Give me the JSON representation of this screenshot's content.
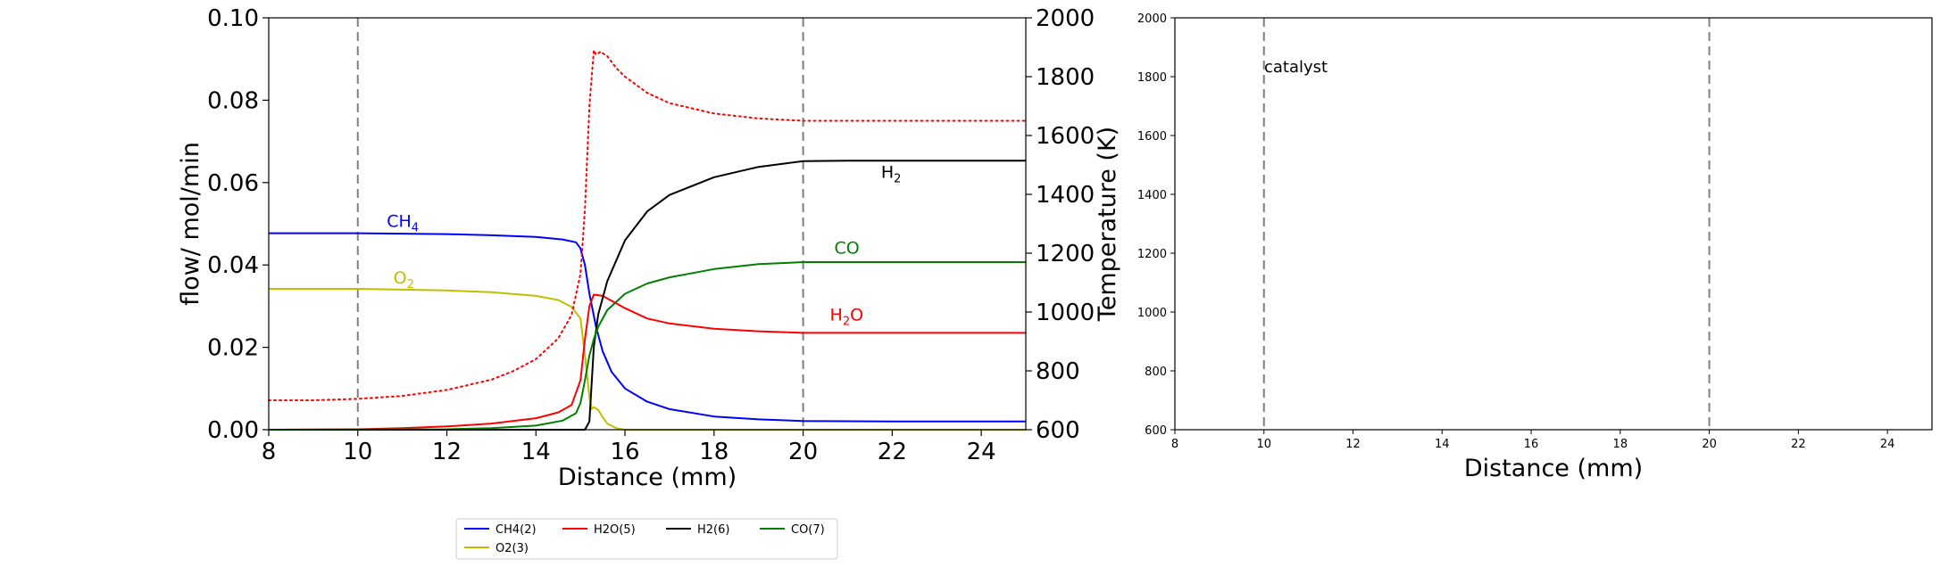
{
  "colors": {
    "CH4": "#0000ff",
    "O2": "#bfbf00",
    "H2O": "#ff0000",
    "H2": "#000000",
    "CO": "#008000",
    "temperature": "#ff0000",
    "marker": "#808080"
  },
  "chart_data": [
    {
      "type": "line",
      "xlabel": "Distance (mm)",
      "ylabel": "flow/ mol/min",
      "y2label": "Temperature (K)",
      "xlim": [
        8,
        25
      ],
      "ylim": [
        0,
        0.1
      ],
      "y2lim": [
        600,
        2000
      ],
      "xticks": [
        "8",
        "10",
        "12",
        "14",
        "16",
        "18",
        "20",
        "22",
        "24"
      ],
      "yticks": [
        "0.00",
        "0.02",
        "0.04",
        "0.06",
        "0.08",
        "0.10"
      ],
      "y2ticks": [
        "600",
        "800",
        "1000",
        "1200",
        "1400",
        "1600",
        "1800",
        "2000"
      ],
      "vlines": [
        10,
        20
      ],
      "grid": false,
      "series": [
        {
          "name": "CH4(2)",
          "key": "CH4",
          "axis": "y1",
          "x": [
            8,
            10,
            12,
            13,
            14,
            14.6,
            14.9,
            15.0,
            15.1,
            15.2,
            15.35,
            15.5,
            15.7,
            16,
            16.5,
            17,
            18,
            19,
            20,
            22,
            25
          ],
          "y": [
            0.0477,
            0.0477,
            0.0475,
            0.0472,
            0.0468,
            0.0462,
            0.0455,
            0.044,
            0.04,
            0.033,
            0.025,
            0.019,
            0.014,
            0.01,
            0.0068,
            0.005,
            0.0032,
            0.0025,
            0.0021,
            0.002,
            0.002
          ]
        },
        {
          "name": "O2(3)",
          "key": "O2",
          "axis": "y1",
          "x": [
            8,
            10,
            12,
            13,
            14,
            14.5,
            14.8,
            15.0,
            15.1,
            15.2,
            15.25,
            15.3,
            15.4,
            15.5,
            15.6,
            15.8,
            16,
            25
          ],
          "y": [
            0.0342,
            0.0342,
            0.0338,
            0.0334,
            0.0325,
            0.0315,
            0.0298,
            0.027,
            0.018,
            0.008,
            0.005,
            0.0055,
            0.0048,
            0.003,
            0.0015,
            0.0004,
            0.0,
            0.0
          ]
        },
        {
          "name": "H2O(5)",
          "key": "H2O",
          "axis": "y1",
          "x": [
            8,
            10,
            11,
            12,
            13,
            14,
            14.5,
            14.8,
            15.0,
            15.1,
            15.2,
            15.3,
            15.5,
            16,
            16.5,
            17,
            18,
            19,
            20,
            22,
            25
          ],
          "y": [
            0.0,
            0.0001,
            0.0004,
            0.0008,
            0.0015,
            0.0028,
            0.0042,
            0.006,
            0.012,
            0.022,
            0.03,
            0.0328,
            0.0325,
            0.0295,
            0.027,
            0.0258,
            0.0245,
            0.0239,
            0.0235,
            0.0235,
            0.0235
          ]
        },
        {
          "name": "H2(6)",
          "key": "H2",
          "axis": "y1",
          "x": [
            8,
            15.1,
            15.2,
            15.3,
            15.4,
            15.6,
            16,
            16.5,
            17,
            18,
            19,
            20,
            21,
            25
          ],
          "y": [
            0.0,
            0.0,
            0.002,
            0.02,
            0.028,
            0.036,
            0.046,
            0.053,
            0.057,
            0.0613,
            0.0638,
            0.0652,
            0.0653,
            0.0653
          ]
        },
        {
          "name": "CO(7)",
          "key": "CO",
          "axis": "y1",
          "x": [
            8,
            12,
            13,
            14,
            14.6,
            14.9,
            15.0,
            15.1,
            15.2,
            15.3,
            15.4,
            15.6,
            16,
            16.5,
            17,
            18,
            19,
            20,
            25
          ],
          "y": [
            0.0,
            0.0001,
            0.0004,
            0.001,
            0.0022,
            0.004,
            0.0065,
            0.012,
            0.018,
            0.022,
            0.025,
            0.029,
            0.033,
            0.0355,
            0.037,
            0.039,
            0.0402,
            0.0407,
            0.0407
          ]
        },
        {
          "name": "",
          "key": "temperature",
          "axis": "y2",
          "dotted": true,
          "x": [
            8,
            9,
            10,
            11,
            12,
            13,
            13.5,
            14,
            14.5,
            14.8,
            15.0,
            15.1,
            15.2,
            15.3,
            15.35,
            15.45,
            15.6,
            15.8,
            16,
            16.5,
            17,
            18,
            19,
            20,
            25
          ],
          "y": [
            700,
            700,
            705,
            715,
            735,
            770,
            800,
            840,
            910,
            990,
            1130,
            1350,
            1700,
            1890,
            1875,
            1885,
            1870,
            1830,
            1800,
            1745,
            1710,
            1675,
            1658,
            1650,
            1650
          ]
        }
      ],
      "annotations": [
        {
          "text_main": "CH",
          "text_sub": "4",
          "text_tail": "",
          "key": "CH4",
          "x": 10.65,
          "y": 0.0492
        },
        {
          "text_main": "O",
          "text_sub": "2",
          "text_tail": "",
          "key": "O2",
          "x": 10.8,
          "y": 0.0355
        },
        {
          "text_main": "CO",
          "text_sub": "",
          "text_tail": "",
          "key": "CO",
          "x": 20.7,
          "y": 0.0428
        },
        {
          "text_main": "H",
          "text_sub": "2",
          "text_tail": "O",
          "key": "H2O",
          "x": 20.6,
          "y": 0.0265
        },
        {
          "text_main": "H",
          "text_sub": "2",
          "text_tail": "",
          "key": "H2",
          "x": 21.75,
          "y": 0.0612
        }
      ]
    },
    {
      "type": "line",
      "xlabel": "Distance (mm)",
      "xlim": [
        8,
        25
      ],
      "ylim": [
        600,
        2000
      ],
      "xticks": [
        "8",
        "10",
        "12",
        "14",
        "16",
        "18",
        "20",
        "22",
        "24"
      ],
      "yticks": [
        "600",
        "800",
        "1000",
        "1200",
        "1400",
        "1600",
        "1800",
        "2000"
      ],
      "vlines": [
        10,
        20
      ],
      "annotation": "catalyst",
      "series": []
    }
  ],
  "legend": {
    "entries": [
      {
        "label": "CH4(2)",
        "key": "CH4"
      },
      {
        "label": "H2O(5)",
        "key": "H2O"
      },
      {
        "label": "H2(6)",
        "key": "H2"
      },
      {
        "label": "CO(7)",
        "key": "CO"
      },
      {
        "label": "O2(3)",
        "key": "O2"
      }
    ]
  }
}
